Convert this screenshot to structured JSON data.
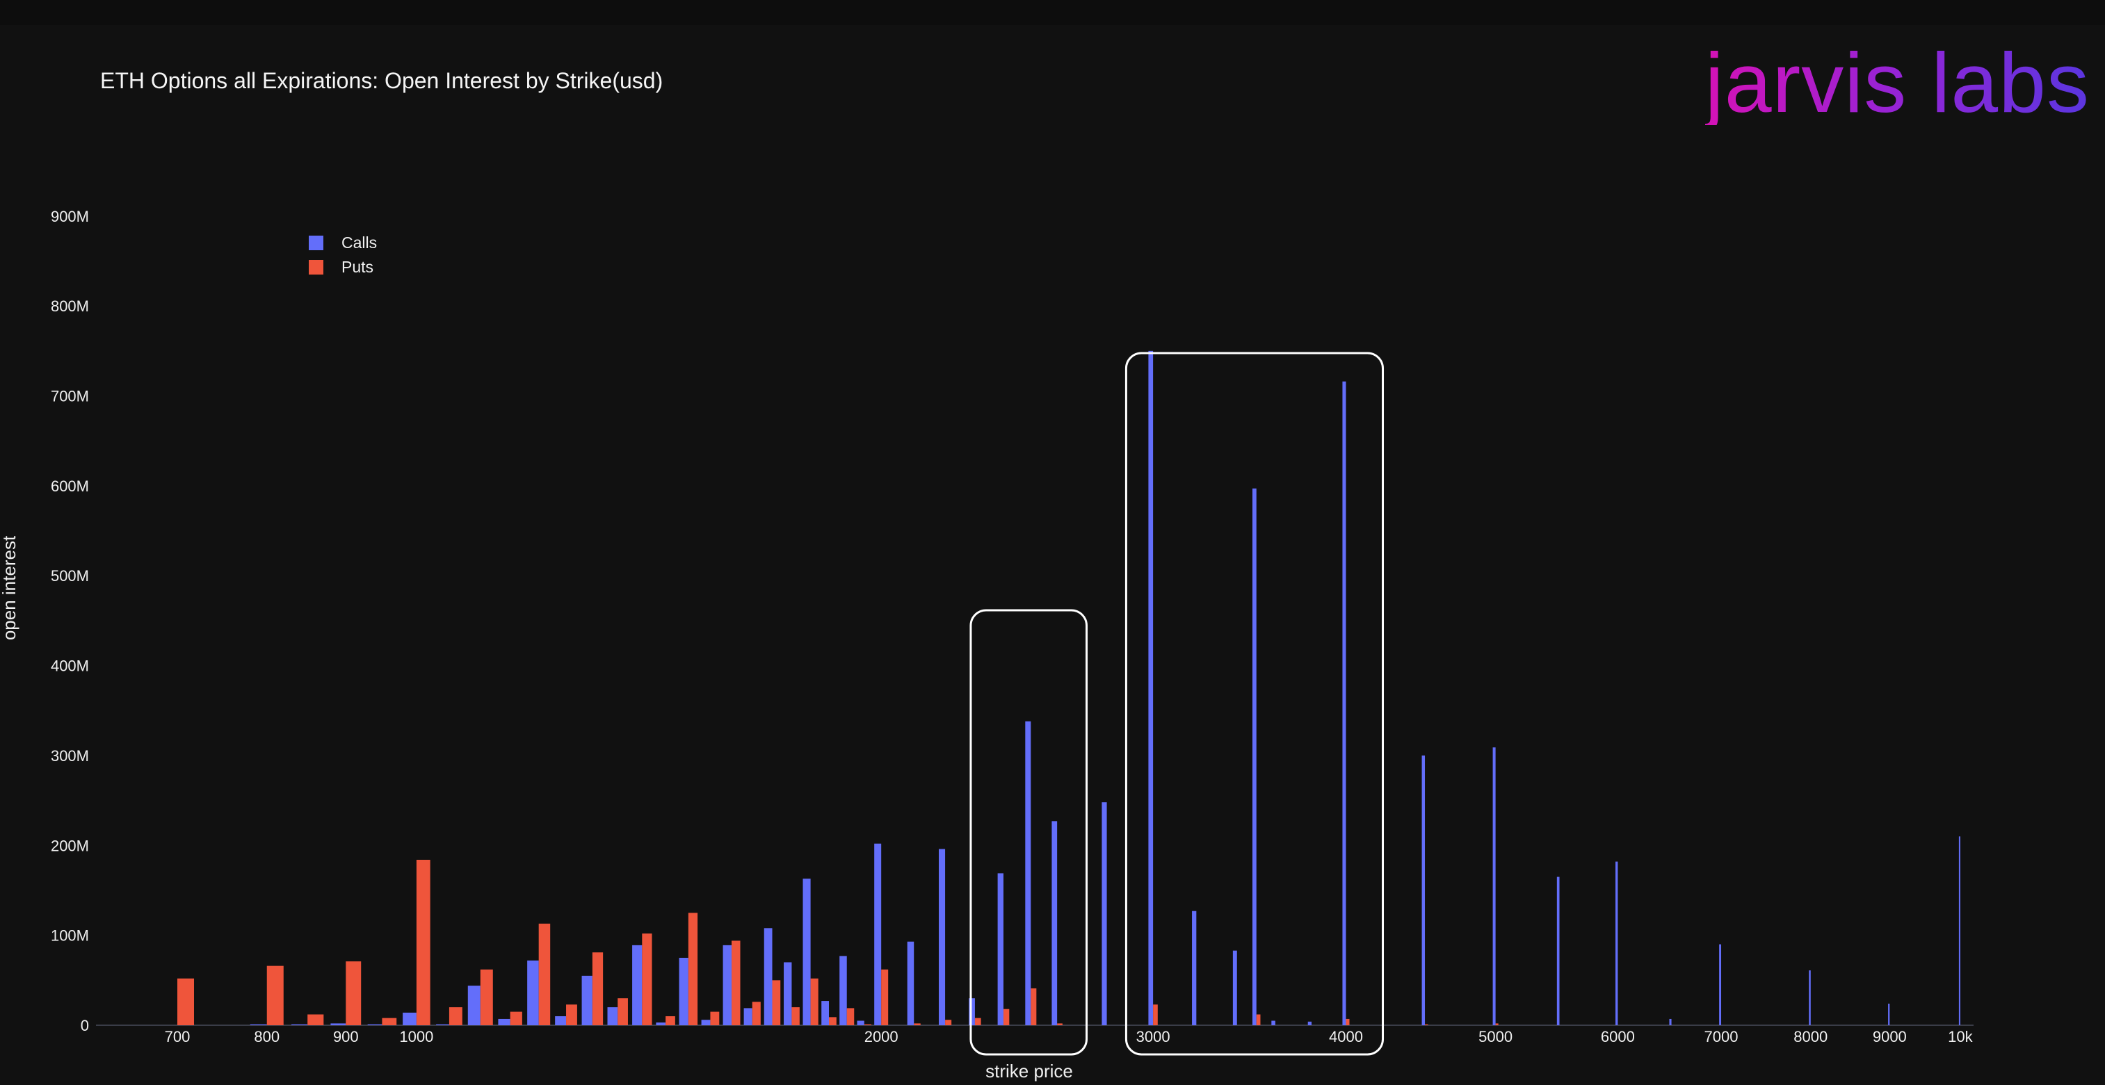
{
  "header": {
    "title": "ETH Options all Expirations: Open Interest by Strike(usd)",
    "logo_text": "jarvis labs"
  },
  "colors": {
    "background": "#111111",
    "calls": "#636efa",
    "puts": "#ef553b",
    "highlight_box": "#ffffff",
    "logo_gradient": [
      "#d512b6",
      "#5b36e0"
    ]
  },
  "chart_data": {
    "type": "bar",
    "title": "ETH Options all Expirations: Open Interest by Strike(usd)",
    "xlabel": "strike price",
    "ylabel": "open interest",
    "x_scale": "log",
    "xlim": [
      620,
      10200
    ],
    "ylim": [
      0,
      930000000
    ],
    "x_ticks": [
      700,
      800,
      900,
      1000,
      2000,
      3000,
      4000,
      5000,
      6000,
      7000,
      8000,
      9000,
      10000
    ],
    "x_tick_labels": [
      "700",
      "800",
      "900",
      "1000",
      "2000",
      "3000",
      "4000",
      "5000",
      "6000",
      "7000",
      "8000",
      "9000",
      "10k"
    ],
    "y_ticks": [
      0,
      100000000,
      200000000,
      300000000,
      400000000,
      500000000,
      600000000,
      700000000,
      800000000,
      900000000
    ],
    "y_tick_labels": [
      "0",
      "100M",
      "200M",
      "300M",
      "400M",
      "500M",
      "600M",
      "700M",
      "800M",
      "900M"
    ],
    "grid": false,
    "legend": {
      "position": "top-left",
      "entries": [
        "Calls",
        "Puts"
      ]
    },
    "series": [
      {
        "name": "Calls",
        "color": "#636efa",
        "points": [
          [
            700,
            0
          ],
          [
            800,
            1000000
          ],
          [
            850,
            1000000
          ],
          [
            900,
            2000000
          ],
          [
            950,
            1000000
          ],
          [
            1000,
            14000000
          ],
          [
            1050,
            1000000
          ],
          [
            1100,
            44000000
          ],
          [
            1150,
            7000000
          ],
          [
            1200,
            72000000
          ],
          [
            1250,
            10000000
          ],
          [
            1300,
            55000000
          ],
          [
            1350,
            20000000
          ],
          [
            1400,
            89000000
          ],
          [
            1450,
            3000000
          ],
          [
            1500,
            75000000
          ],
          [
            1550,
            6000000
          ],
          [
            1600,
            89000000
          ],
          [
            1650,
            19000000
          ],
          [
            1700,
            108000000
          ],
          [
            1750,
            70000000
          ],
          [
            1800,
            163000000
          ],
          [
            1850,
            27000000
          ],
          [
            1900,
            77000000
          ],
          [
            1950,
            5000000
          ],
          [
            2000,
            202000000
          ],
          [
            2100,
            93000000
          ],
          [
            2200,
            196000000
          ],
          [
            2300,
            30000000
          ],
          [
            2400,
            169000000
          ],
          [
            2500,
            338000000
          ],
          [
            2600,
            227000000
          ],
          [
            2800,
            248000000
          ],
          [
            3000,
            750000000
          ],
          [
            3200,
            127000000
          ],
          [
            3400,
            83000000
          ],
          [
            3500,
            597000000
          ],
          [
            3600,
            5000000
          ],
          [
            3800,
            4000000
          ],
          [
            4000,
            716000000
          ],
          [
            4500,
            300000000
          ],
          [
            5000,
            309000000
          ],
          [
            5500,
            165000000
          ],
          [
            6000,
            182000000
          ],
          [
            6500,
            7000000
          ],
          [
            7000,
            90000000
          ],
          [
            8000,
            61000000
          ],
          [
            9000,
            24000000
          ],
          [
            10000,
            210000000
          ]
        ]
      },
      {
        "name": "Puts",
        "color": "#ef553b",
        "points": [
          [
            700,
            52000000
          ],
          [
            800,
            66000000
          ],
          [
            850,
            12000000
          ],
          [
            900,
            71000000
          ],
          [
            950,
            8000000
          ],
          [
            1000,
            184000000
          ],
          [
            1050,
            20000000
          ],
          [
            1100,
            62000000
          ],
          [
            1150,
            15000000
          ],
          [
            1200,
            113000000
          ],
          [
            1250,
            23000000
          ],
          [
            1300,
            81000000
          ],
          [
            1350,
            30000000
          ],
          [
            1400,
            102000000
          ],
          [
            1450,
            10000000
          ],
          [
            1500,
            125000000
          ],
          [
            1550,
            15000000
          ],
          [
            1600,
            94000000
          ],
          [
            1650,
            26000000
          ],
          [
            1700,
            50000000
          ],
          [
            1750,
            20000000
          ],
          [
            1800,
            52000000
          ],
          [
            1850,
            9000000
          ],
          [
            1900,
            19000000
          ],
          [
            1950,
            1000000
          ],
          [
            2000,
            62000000
          ],
          [
            2100,
            2000000
          ],
          [
            2200,
            6000000
          ],
          [
            2300,
            8000000
          ],
          [
            2400,
            18000000
          ],
          [
            2500,
            41000000
          ],
          [
            2600,
            2000000
          ],
          [
            3000,
            23000000
          ],
          [
            3500,
            12000000
          ],
          [
            4000,
            7000000
          ],
          [
            4500,
            1000000
          ],
          [
            5000,
            2000000
          ]
        ]
      }
    ],
    "highlight_ranges": [
      [
        2300,
        2700
      ],
      [
        2900,
        4200
      ]
    ]
  }
}
